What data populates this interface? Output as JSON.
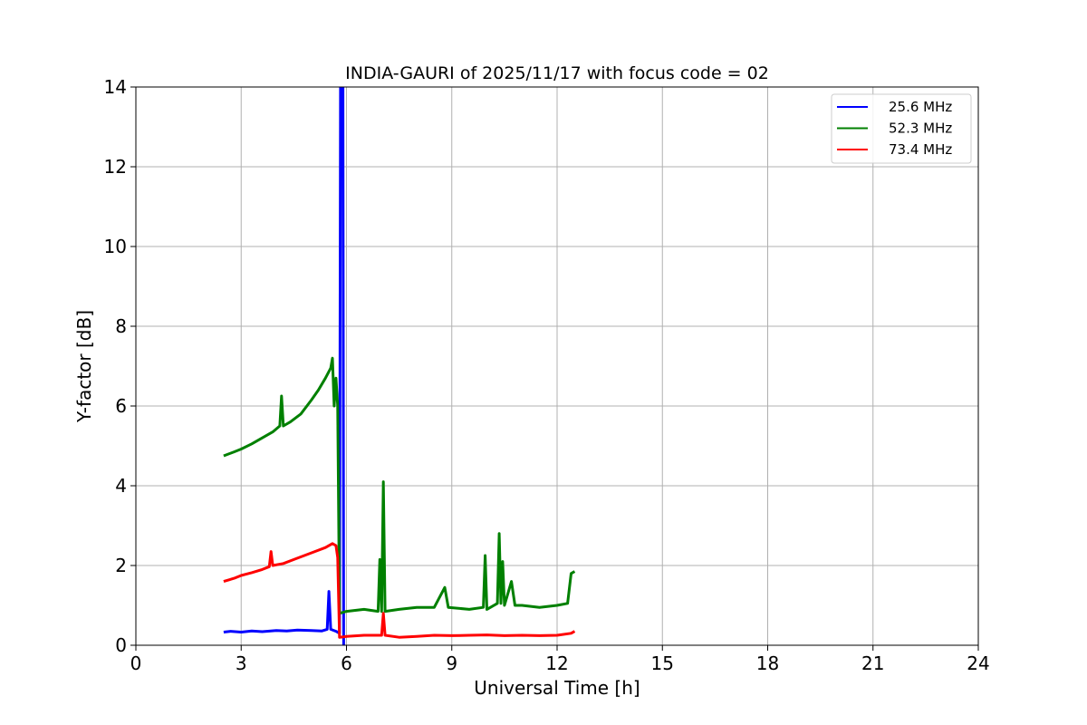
{
  "chart_data": {
    "type": "line",
    "title": "INDIA-GAURI of 2025/11/17 with focus code = 02",
    "xlabel": "Universal Time [h]",
    "ylabel": "Y-factor [dB]",
    "xlim": [
      0,
      24
    ],
    "ylim": [
      0,
      14
    ],
    "xticks": [
      0,
      3,
      6,
      9,
      12,
      15,
      18,
      21,
      24
    ],
    "yticks": [
      0,
      2,
      4,
      6,
      8,
      10,
      12,
      14
    ],
    "grid": true,
    "legend_position": "top-right",
    "series": [
      {
        "name": "25.6 MHz",
        "color": "#0000ff",
        "points": [
          [
            2.5,
            0.33
          ],
          [
            2.7,
            0.35
          ],
          [
            3.0,
            0.33
          ],
          [
            3.3,
            0.36
          ],
          [
            3.6,
            0.34
          ],
          [
            4.0,
            0.37
          ],
          [
            4.3,
            0.36
          ],
          [
            4.6,
            0.38
          ],
          [
            5.0,
            0.37
          ],
          [
            5.3,
            0.36
          ],
          [
            5.45,
            0.4
          ],
          [
            5.5,
            1.35
          ],
          [
            5.55,
            0.4
          ],
          [
            5.7,
            0.35
          ],
          [
            5.8,
            0.3
          ],
          [
            5.83,
            14.0
          ],
          [
            5.9,
            14.0
          ],
          [
            5.92,
            0.0
          ]
        ]
      },
      {
        "name": "52.3 MHz",
        "color": "#008000",
        "points": [
          [
            2.5,
            4.75
          ],
          [
            2.8,
            4.85
          ],
          [
            3.0,
            4.92
          ],
          [
            3.3,
            5.05
          ],
          [
            3.6,
            5.2
          ],
          [
            3.9,
            5.35
          ],
          [
            4.1,
            5.5
          ],
          [
            4.15,
            6.25
          ],
          [
            4.2,
            5.5
          ],
          [
            4.4,
            5.6
          ],
          [
            4.7,
            5.8
          ],
          [
            5.0,
            6.15
          ],
          [
            5.2,
            6.4
          ],
          [
            5.4,
            6.7
          ],
          [
            5.55,
            6.95
          ],
          [
            5.6,
            7.2
          ],
          [
            5.65,
            6.0
          ],
          [
            5.7,
            6.7
          ],
          [
            5.75,
            6.0
          ],
          [
            5.8,
            0.8
          ],
          [
            6.0,
            0.85
          ],
          [
            6.5,
            0.9
          ],
          [
            6.9,
            0.85
          ],
          [
            6.95,
            2.15
          ],
          [
            7.0,
            0.85
          ],
          [
            7.05,
            4.1
          ],
          [
            7.1,
            0.85
          ],
          [
            7.5,
            0.9
          ],
          [
            8.0,
            0.95
          ],
          [
            8.5,
            0.95
          ],
          [
            8.8,
            1.45
          ],
          [
            8.9,
            0.95
          ],
          [
            9.5,
            0.9
          ],
          [
            9.9,
            0.95
          ],
          [
            9.95,
            2.25
          ],
          [
            10.0,
            0.9
          ],
          [
            10.3,
            1.05
          ],
          [
            10.35,
            2.8
          ],
          [
            10.4,
            1.05
          ],
          [
            10.45,
            2.1
          ],
          [
            10.5,
            1.0
          ],
          [
            10.7,
            1.6
          ],
          [
            10.8,
            1.0
          ],
          [
            11.0,
            1.0
          ],
          [
            11.5,
            0.95
          ],
          [
            12.0,
            1.0
          ],
          [
            12.3,
            1.05
          ],
          [
            12.4,
            1.8
          ],
          [
            12.5,
            1.85
          ]
        ]
      },
      {
        "name": "73.4 MHz",
        "color": "#ff0000",
        "points": [
          [
            2.5,
            1.6
          ],
          [
            2.8,
            1.68
          ],
          [
            3.0,
            1.75
          ],
          [
            3.3,
            1.82
          ],
          [
            3.6,
            1.9
          ],
          [
            3.8,
            1.97
          ],
          [
            3.85,
            2.35
          ],
          [
            3.9,
            2.0
          ],
          [
            4.2,
            2.05
          ],
          [
            4.5,
            2.15
          ],
          [
            4.8,
            2.25
          ],
          [
            5.1,
            2.35
          ],
          [
            5.4,
            2.45
          ],
          [
            5.6,
            2.55
          ],
          [
            5.7,
            2.5
          ],
          [
            5.75,
            2.2
          ],
          [
            5.8,
            0.2
          ],
          [
            6.0,
            0.22
          ],
          [
            6.5,
            0.25
          ],
          [
            7.0,
            0.25
          ],
          [
            7.05,
            0.8
          ],
          [
            7.1,
            0.25
          ],
          [
            7.5,
            0.2
          ],
          [
            8.0,
            0.22
          ],
          [
            8.5,
            0.25
          ],
          [
            9.0,
            0.24
          ],
          [
            9.5,
            0.25
          ],
          [
            10.0,
            0.26
          ],
          [
            10.5,
            0.24
          ],
          [
            11.0,
            0.25
          ],
          [
            11.5,
            0.24
          ],
          [
            12.0,
            0.25
          ],
          [
            12.4,
            0.3
          ],
          [
            12.5,
            0.35
          ]
        ]
      }
    ]
  }
}
